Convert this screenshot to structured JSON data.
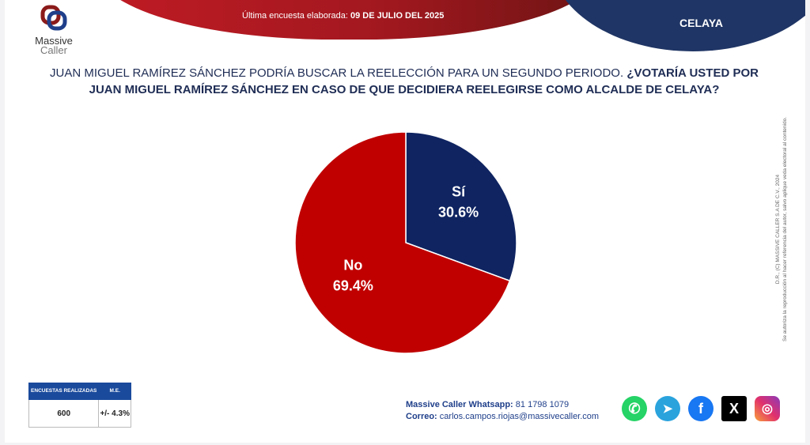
{
  "header": {
    "logo_text": [
      "Massive",
      "Caller"
    ],
    "survey_date_label": "Última encuesta elaborada:",
    "survey_date": "09 DE JULIO DEL 2025",
    "city": "CELAYA"
  },
  "question": {
    "part1": "JUAN MIGUEL RAMÍREZ SÁNCHEZ PODRÍA BUSCAR LA REELECCIÓN PARA UN SEGUNDO PERIODO.",
    "part2": "¿VOTARÍA USTED POR JUAN MIGUEL RAMÍREZ SÁNCHEZ EN CASO DE QUE DECIDIERA REELEGIRSE COMO ALCALDE DE CELAYA?"
  },
  "side_note": {
    "line1": "D.R., (C) MASSIVE CALLER S.A DE C.V., 2024",
    "line2": "Se autoriza la reproducción al hacer referencia del autor, salvo aplique veda electoral al contenido."
  },
  "chart_data": {
    "type": "pie",
    "title": "",
    "slices": [
      {
        "label": "Sí",
        "value": 30.6,
        "display": "30.6%",
        "color": "#0f2461"
      },
      {
        "label": "No",
        "value": 69.4,
        "display": "69.4%",
        "color": "#c00000"
      }
    ]
  },
  "stats": {
    "headers": [
      "ENCUESTAS REALIZADAS",
      "M.E."
    ],
    "values": [
      "600",
      "+/- 4.3%"
    ]
  },
  "contact": {
    "whatsapp_label": "Massive Caller Whatsapp:",
    "whatsapp": "81 1798 1079",
    "email_label": "Correo:",
    "email": "carlos.campos.riojas@massivecaller.com"
  },
  "social_icons": [
    "whatsapp-icon",
    "telegram-icon",
    "facebook-icon",
    "x-icon",
    "instagram-icon"
  ]
}
